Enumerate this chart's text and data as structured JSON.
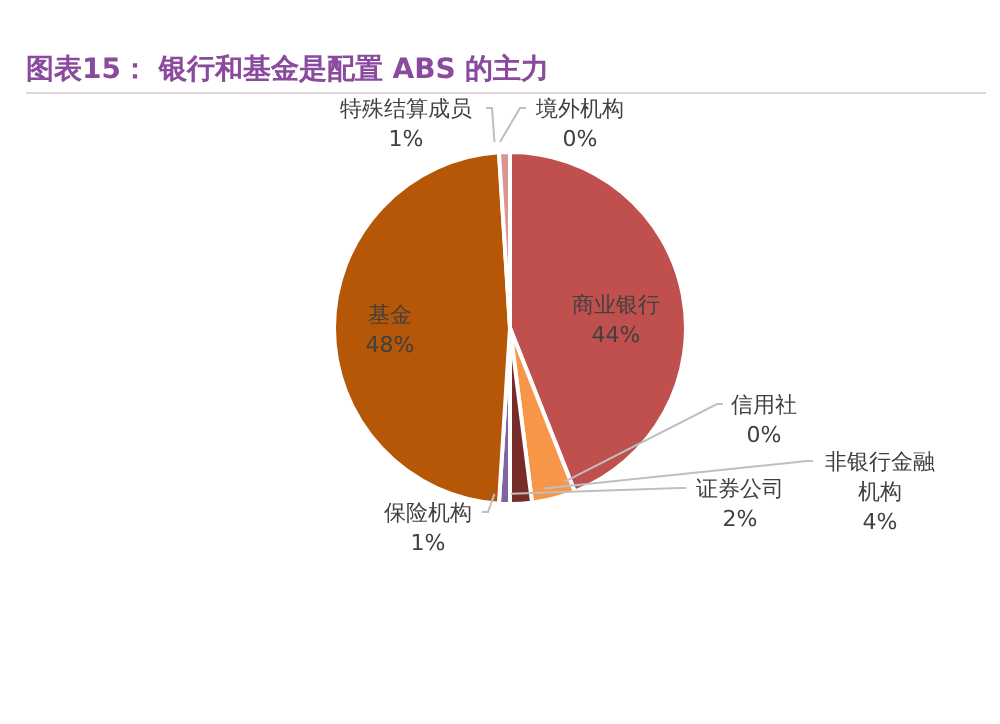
{
  "chart_data": {
    "type": "pie",
    "title": "图表15：  银行和基金是配置 ABS 的主力",
    "categories": [
      "境外机构",
      "商业银行",
      "信用社",
      "非银行金融机构",
      "证券公司",
      "保险机构",
      "基金",
      "特殊结算成员"
    ],
    "values": [
      0,
      44,
      0,
      4,
      2,
      1,
      48,
      1
    ],
    "value_labels": [
      "0%",
      "44%",
      "0%",
      "4%",
      "2%",
      "1%",
      "48%",
      "1%"
    ],
    "colors": [
      "#9bbb59",
      "#c0504d",
      "#4f81bd",
      "#f79646",
      "#772c2a",
      "#8064a2",
      "#b65708",
      "#d99694"
    ]
  }
}
